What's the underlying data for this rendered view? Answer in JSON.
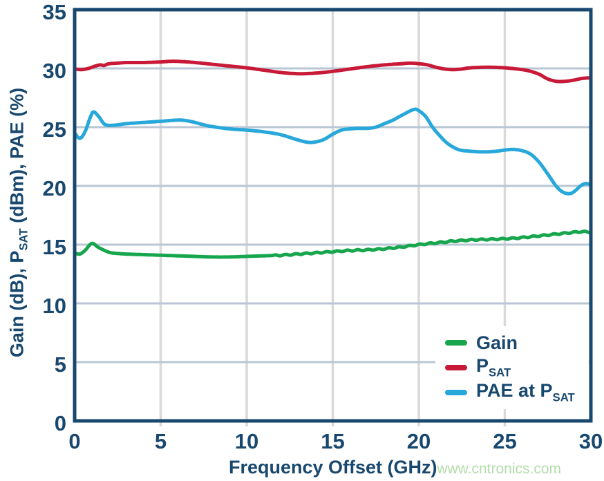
{
  "watermark": "www.cntronics.com",
  "chart_data": {
    "type": "line",
    "title": "",
    "xlabel": "Frequency Offset (GHz)",
    "ylabel_html": "Gain (dB), P<sub>SAT</sub> (dBm), PAE (%)",
    "xlim": [
      0,
      30
    ],
    "ylim": [
      0,
      35
    ],
    "xticks": [
      0,
      5,
      10,
      15,
      20,
      25,
      30
    ],
    "yticks": [
      0,
      5,
      10,
      15,
      20,
      25,
      30,
      35
    ],
    "grid": true,
    "legend_position": "inside-bottom-right",
    "colors": {
      "axis": "#19486f",
      "text": "#19486f",
      "hgrid": "#b9c6d4",
      "vgrid": "#d9d9d9",
      "background": "#ffffff",
      "watermark": "#b3dcab"
    },
    "series": [
      {
        "name": "Gain",
        "label_html": "Gain",
        "color": "#17a64d",
        "unit": "dB",
        "ripple": {
          "from": 11.5,
          "amplitude": 0.05,
          "period": 0.6
        },
        "points": [
          [
            0,
            14.3
          ],
          [
            0.3,
            14.2
          ],
          [
            0.6,
            14.5
          ],
          [
            1,
            15.1
          ],
          [
            1.4,
            14.75
          ],
          [
            2,
            14.35
          ],
          [
            2.5,
            14.25
          ],
          [
            3,
            14.2
          ],
          [
            4,
            14.15
          ],
          [
            5,
            14.1
          ],
          [
            6,
            14.05
          ],
          [
            7,
            14.0
          ],
          [
            8,
            13.95
          ],
          [
            9,
            13.95
          ],
          [
            10,
            14.0
          ],
          [
            11,
            14.05
          ],
          [
            12,
            14.1
          ],
          [
            13,
            14.2
          ],
          [
            14,
            14.3
          ],
          [
            15,
            14.4
          ],
          [
            16,
            14.5
          ],
          [
            17,
            14.55
          ],
          [
            18,
            14.65
          ],
          [
            19,
            14.8
          ],
          [
            20,
            15.0
          ],
          [
            21,
            15.15
          ],
          [
            22,
            15.3
          ],
          [
            23,
            15.4
          ],
          [
            24,
            15.45
          ],
          [
            25,
            15.5
          ],
          [
            26,
            15.6
          ],
          [
            27,
            15.75
          ],
          [
            28,
            15.9
          ],
          [
            29,
            16.05
          ],
          [
            29.5,
            16.1
          ],
          [
            30,
            16.05
          ]
        ]
      },
      {
        "name": "PSAT",
        "label_html": "P<sub>SAT</sub>",
        "color": "#c81a38",
        "unit": "dBm",
        "points": [
          [
            0,
            29.95
          ],
          [
            0.4,
            29.9
          ],
          [
            0.8,
            30.0
          ],
          [
            1.2,
            30.2
          ],
          [
            1.5,
            30.3
          ],
          [
            1.7,
            30.25
          ],
          [
            2,
            30.4
          ],
          [
            2.5,
            30.45
          ],
          [
            3,
            30.5
          ],
          [
            4,
            30.5
          ],
          [
            5,
            30.55
          ],
          [
            5.5,
            30.6
          ],
          [
            6,
            30.6
          ],
          [
            7,
            30.5
          ],
          [
            8,
            30.35
          ],
          [
            9,
            30.2
          ],
          [
            10,
            30.05
          ],
          [
            11,
            29.85
          ],
          [
            12,
            29.65
          ],
          [
            13,
            29.55
          ],
          [
            14,
            29.6
          ],
          [
            15,
            29.75
          ],
          [
            16,
            29.95
          ],
          [
            17,
            30.15
          ],
          [
            18,
            30.3
          ],
          [
            19,
            30.4
          ],
          [
            19.5,
            30.45
          ],
          [
            20,
            30.4
          ],
          [
            20.5,
            30.3
          ],
          [
            21,
            30.1
          ],
          [
            21.5,
            29.95
          ],
          [
            22,
            29.9
          ],
          [
            22.5,
            29.95
          ],
          [
            23,
            30.05
          ],
          [
            24,
            30.1
          ],
          [
            25,
            30.05
          ],
          [
            26,
            29.9
          ],
          [
            26.5,
            29.75
          ],
          [
            27,
            29.5
          ],
          [
            27.5,
            29.1
          ],
          [
            28,
            28.9
          ],
          [
            28.5,
            28.9
          ],
          [
            29,
            29.0
          ],
          [
            29.5,
            29.15
          ],
          [
            30,
            29.2
          ]
        ]
      },
      {
        "name": "PAE at PSAT",
        "label_html": "PAE at P<sub>SAT</sub>",
        "color": "#28a8da",
        "unit": "%",
        "points": [
          [
            0,
            24.5
          ],
          [
            0.3,
            24.05
          ],
          [
            0.6,
            24.6
          ],
          [
            0.9,
            25.8
          ],
          [
            1.1,
            26.3
          ],
          [
            1.4,
            25.9
          ],
          [
            1.7,
            25.3
          ],
          [
            2,
            25.15
          ],
          [
            2.5,
            25.2
          ],
          [
            3,
            25.3
          ],
          [
            4,
            25.4
          ],
          [
            5,
            25.5
          ],
          [
            6,
            25.6
          ],
          [
            6.5,
            25.55
          ],
          [
            7,
            25.4
          ],
          [
            7.5,
            25.2
          ],
          [
            8,
            25.05
          ],
          [
            9,
            24.85
          ],
          [
            10,
            24.75
          ],
          [
            11,
            24.6
          ],
          [
            12,
            24.35
          ],
          [
            13,
            23.9
          ],
          [
            13.7,
            23.7
          ],
          [
            14.4,
            23.9
          ],
          [
            15,
            24.4
          ],
          [
            15.5,
            24.75
          ],
          [
            16,
            24.85
          ],
          [
            16.5,
            24.9
          ],
          [
            17,
            24.9
          ],
          [
            17.5,
            25.0
          ],
          [
            18,
            25.3
          ],
          [
            18.5,
            25.6
          ],
          [
            19,
            26.0
          ],
          [
            19.7,
            26.5
          ],
          [
            20,
            26.4
          ],
          [
            20.4,
            25.9
          ],
          [
            20.8,
            25.0
          ],
          [
            21.2,
            24.3
          ],
          [
            21.6,
            23.7
          ],
          [
            22,
            23.3
          ],
          [
            22.4,
            23.05
          ],
          [
            23,
            22.95
          ],
          [
            23.5,
            22.9
          ],
          [
            24,
            22.9
          ],
          [
            24.5,
            22.95
          ],
          [
            25,
            23.05
          ],
          [
            25.5,
            23.1
          ],
          [
            26,
            23.0
          ],
          [
            26.5,
            22.7
          ],
          [
            27,
            22.0
          ],
          [
            27.5,
            21.0
          ],
          [
            28,
            19.95
          ],
          [
            28.4,
            19.45
          ],
          [
            28.8,
            19.35
          ],
          [
            29.1,
            19.6
          ],
          [
            29.4,
            20.0
          ],
          [
            29.7,
            20.2
          ],
          [
            30,
            20.1
          ]
        ]
      }
    ]
  }
}
